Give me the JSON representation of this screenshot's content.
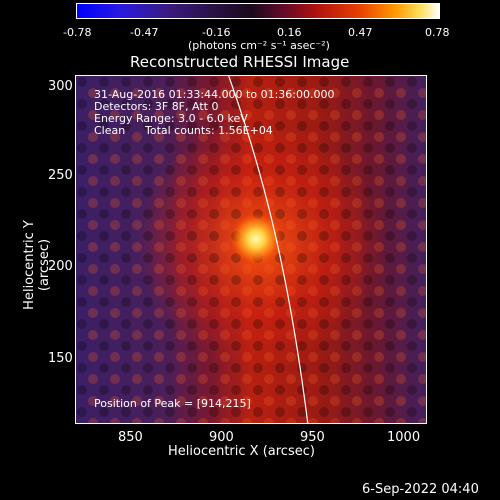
{
  "colorbar": {
    "ticks": [
      "-0.78",
      "-0.47",
      "-0.16",
      "0.16",
      "0.47",
      "0.78"
    ],
    "units": "(photons cm⁻² s⁻¹ asec⁻²)"
  },
  "title": "Reconstructed RHESSI Image",
  "info": {
    "time": "31-Aug-2016 01:33:44.000 to 01:36:00.000",
    "detectors": "Detectors: 3F 8F, Att 0",
    "energy": "Energy Range: 3.0 - 6.0 keV",
    "clean": "Clean",
    "counts": "Total counts: 1.56E+04",
    "peak": "Position of Peak = [914,215]"
  },
  "axes": {
    "xlabel": "Heliocentric X (arcsec)",
    "ylabel": "Heliocentric Y (arcsec)",
    "xticks": [
      "850",
      "900",
      "950",
      "1000"
    ],
    "yticks": [
      "300",
      "250",
      "200",
      "150"
    ]
  },
  "date": "6-Sep-2022 04:40"
}
